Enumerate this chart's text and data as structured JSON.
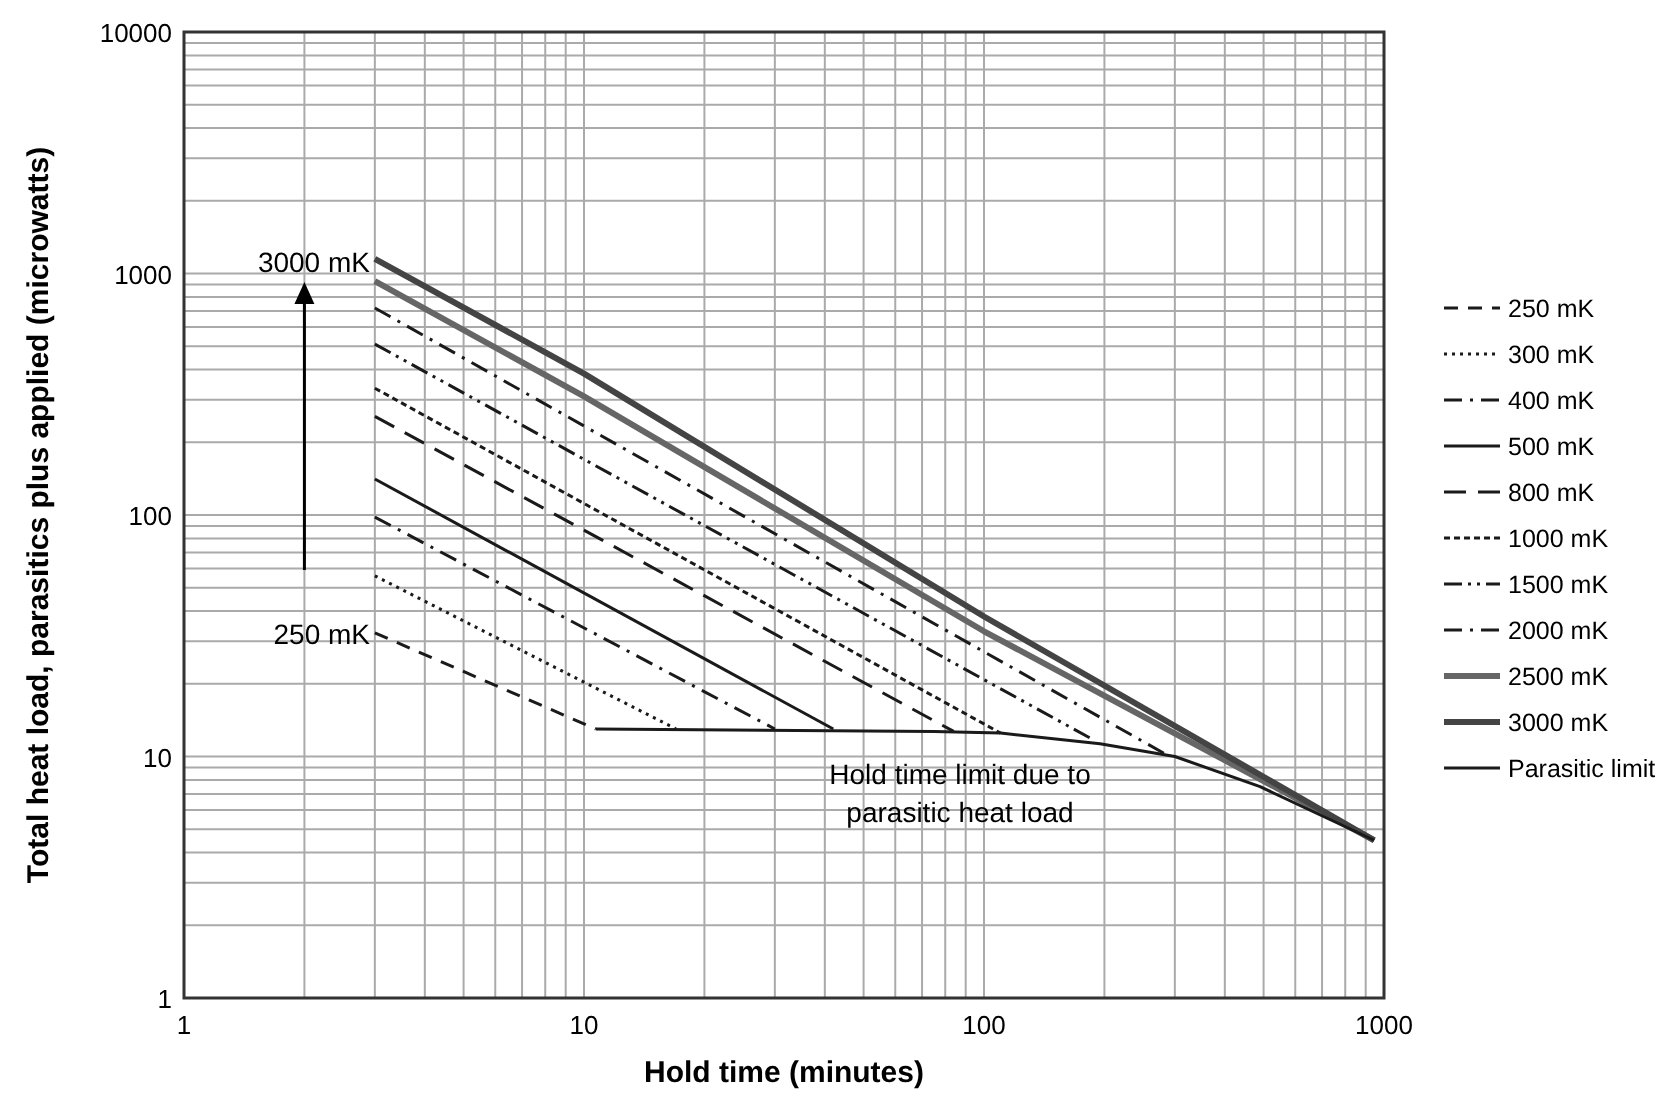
{
  "chart_data": {
    "type": "line",
    "xlabel": "Hold time (minutes)",
    "ylabel": "Total heat load, parasitics plus applied (microwatts)",
    "log": "xy",
    "xlim": [
      1,
      1000
    ],
    "ylim": [
      1,
      10000
    ],
    "xticks": [
      1,
      10,
      100,
      1000
    ],
    "yticks": [
      1,
      10,
      100,
      1000,
      10000
    ],
    "grid": true,
    "legend": "right",
    "marker": "none",
    "series": [
      {
        "name": "250 mK",
        "color": "#1a1a1a",
        "line_style": "dashed",
        "x": [
          3,
          10.7
        ],
        "values": [
          32.5,
          13
        ]
      },
      {
        "name": "300 mK",
        "color": "#1a1a1a",
        "line_style": "dotted",
        "x": [
          3,
          17
        ],
        "values": [
          56,
          13
        ]
      },
      {
        "name": "400 mK",
        "color": "#1a1a1a",
        "line_style": "dashdot",
        "x": [
          3,
          30
        ],
        "values": [
          98,
          13
        ]
      },
      {
        "name": "500 mK",
        "color": "#1a1a1a",
        "line_style": "solid",
        "x": [
          3,
          42
        ],
        "values": [
          141,
          13
        ]
      },
      {
        "name": "800 mK",
        "color": "#1a1a1a",
        "line_style": "longdash",
        "x": [
          3,
          84
        ],
        "values": [
          256,
          12.7
        ]
      },
      {
        "name": "1000 mK",
        "color": "#1a1a1a",
        "line_style": "shortdash",
        "x": [
          3,
          110
        ],
        "values": [
          335,
          12.5
        ]
      },
      {
        "name": "1500 mK",
        "color": "#1a1a1a",
        "line_style": "dashdotdot",
        "x": [
          3,
          188
        ],
        "values": [
          510,
          11.7
        ]
      },
      {
        "name": "2000 mK",
        "color": "#1a1a1a",
        "line_style": "dashdot",
        "x": [
          3,
          285
        ],
        "values": [
          720,
          10.2
        ]
      },
      {
        "name": "2500 mK",
        "color": "#666666",
        "line_style": "solid",
        "x": [
          3,
          10,
          100,
          945
        ],
        "values": [
          930,
          310,
          33,
          4.5
        ]
      },
      {
        "name": "3000 mK",
        "color": "#444444",
        "line_style": "solid",
        "x": [
          3,
          10,
          100,
          945
        ],
        "values": [
          1150,
          385,
          38,
          4.5
        ]
      },
      {
        "name": "Parasitic limit",
        "color": "#1a1a1a",
        "line_style": "solid",
        "x": [
          10.7,
          75,
          110,
          195,
          300,
          490,
          945
        ],
        "values": [
          13,
          12.7,
          12.5,
          11.3,
          10,
          7.5,
          4.5
        ]
      }
    ],
    "annotations": [
      "3000 mK",
      "250 mK",
      "Hold time limit due to parasitic heat load"
    ]
  }
}
